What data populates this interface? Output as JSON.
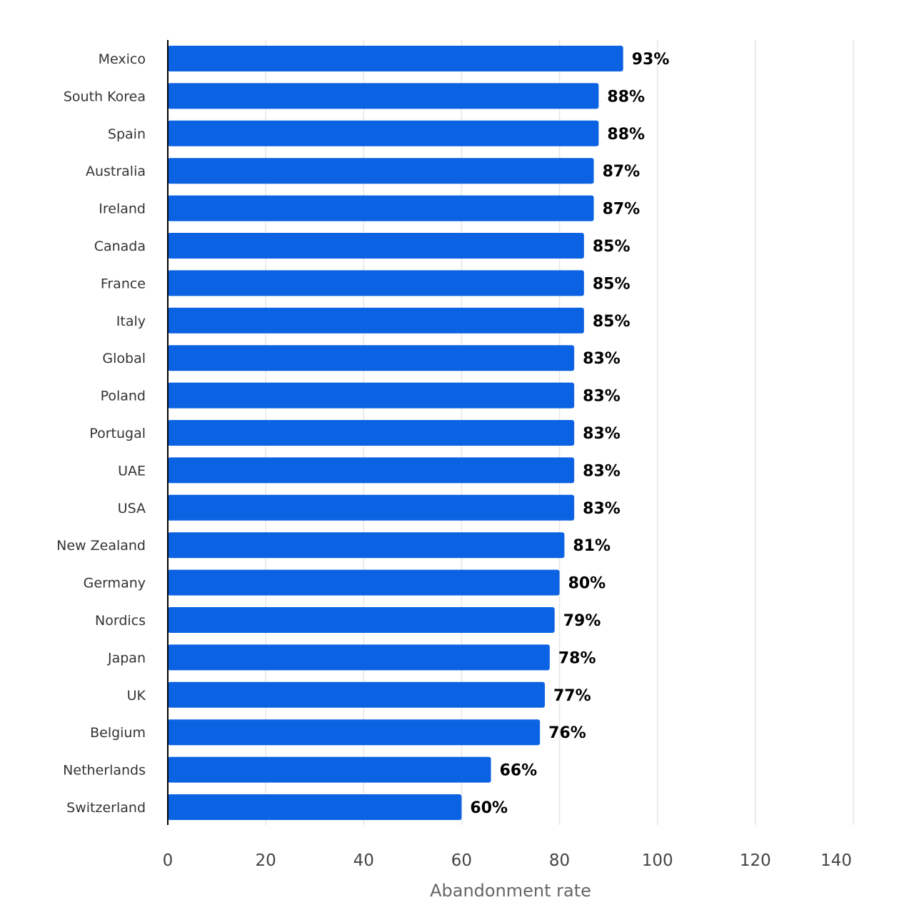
{
  "chart_data": {
    "type": "bar",
    "orientation": "horizontal",
    "categories": [
      "Mexico",
      "South Korea",
      "Spain",
      "Australia",
      "Ireland",
      "Canada",
      "France",
      "Italy",
      "Global",
      "Poland",
      "Portugal",
      "UAE",
      "USA",
      "New Zealand",
      "Germany",
      "Nordics",
      "Japan",
      "UK",
      "Belgium",
      "Netherlands",
      "Switzerland"
    ],
    "values": [
      93,
      88,
      88,
      87,
      87,
      85,
      85,
      85,
      83,
      83,
      83,
      83,
      83,
      81,
      80,
      79,
      78,
      77,
      76,
      66,
      60
    ],
    "data_labels": [
      "93%",
      "88%",
      "88%",
      "87%",
      "87%",
      "85%",
      "85%",
      "85%",
      "83%",
      "83%",
      "83%",
      "83%",
      "83%",
      "81%",
      "80%",
      "79%",
      "78%",
      "77%",
      "76%",
      "66%",
      "60%"
    ],
    "x_ticks": [
      "0",
      "20",
      "40",
      "60",
      "80",
      "100",
      "120",
      "140"
    ],
    "xlabel": "Abandonment rate",
    "xlim": [
      0,
      140
    ],
    "grid": true,
    "legend": "none",
    "bar_color": "#0b62e3",
    "grid_color": "#e6e6e6",
    "axis_color": "#000000"
  }
}
